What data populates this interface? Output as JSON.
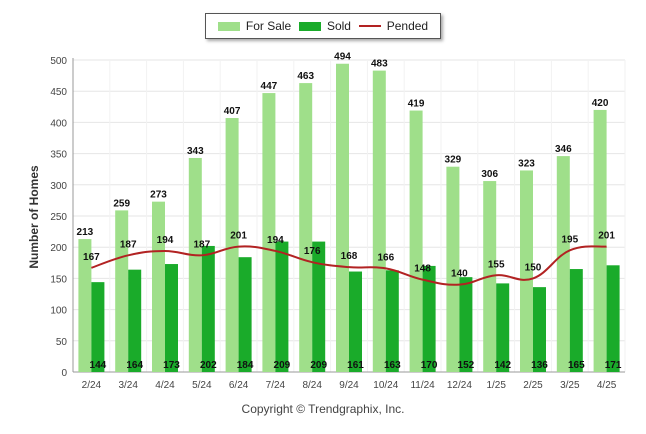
{
  "legend": {
    "for_sale": "For Sale",
    "sold": "Sold",
    "pended": "Pended"
  },
  "copyright": "Copyright © Trendgraphix, Inc.",
  "colors": {
    "for_sale": "#9fdf8a",
    "sold": "#1aab2a",
    "pended": "#b22222",
    "grid": "#e6e6e6",
    "axis": "#999999"
  },
  "chart_data": {
    "type": "bar",
    "ylabel": "Number of Homes",
    "xlabel": "",
    "ylim": [
      0,
      500
    ],
    "yticks": [
      0,
      50,
      100,
      150,
      200,
      250,
      300,
      350,
      400,
      450,
      500
    ],
    "grid": true,
    "legend_position": "top-center",
    "categories": [
      "2/24",
      "3/24",
      "4/24",
      "5/24",
      "6/24",
      "7/24",
      "8/24",
      "9/24",
      "10/24",
      "11/24",
      "12/24",
      "1/25",
      "2/25",
      "3/25",
      "4/25"
    ],
    "series": [
      {
        "name": "For Sale",
        "kind": "bar",
        "values": [
          213,
          259,
          273,
          343,
          407,
          447,
          463,
          494,
          483,
          419,
          329,
          306,
          323,
          346,
          420
        ]
      },
      {
        "name": "Sold",
        "kind": "bar",
        "values": [
          144,
          164,
          173,
          202,
          184,
          209,
          209,
          161,
          163,
          170,
          152,
          142,
          136,
          165,
          171
        ]
      },
      {
        "name": "Pended",
        "kind": "line",
        "values": [
          167,
          187,
          194,
          187,
          201,
          194,
          176,
          168,
          166,
          148,
          140,
          155,
          150,
          195,
          201
        ]
      }
    ]
  }
}
